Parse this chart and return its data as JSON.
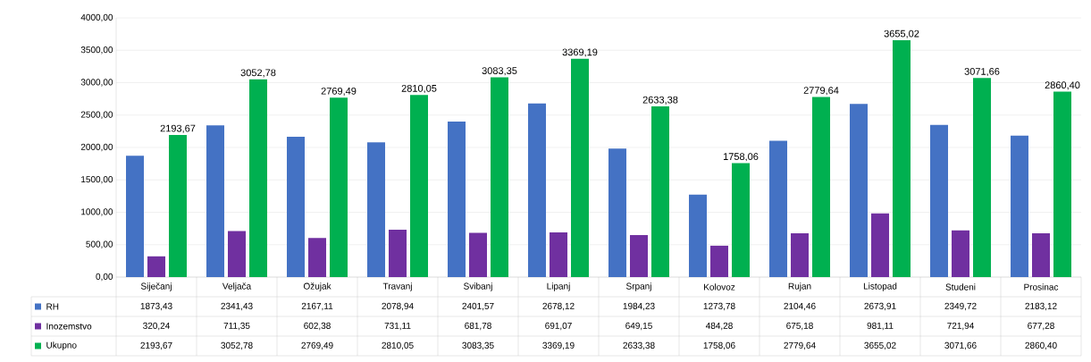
{
  "chart_data": {
    "type": "bar",
    "categories": [
      "Siječanj",
      "Veljača",
      "Ožujak",
      "Travanj",
      "Svibanj",
      "Lipanj",
      "Srpanj",
      "Kolovoz",
      "Rujan",
      "Listopad",
      "Studeni",
      "Prosinac"
    ],
    "series": [
      {
        "name": "RH",
        "color": "#4472c4",
        "values": [
          1873.43,
          2341.43,
          2167.11,
          2078.94,
          2401.57,
          2678.12,
          1984.23,
          1273.78,
          2104.46,
          2673.91,
          2349.72,
          2183.12
        ],
        "value_labels": [
          "1873,43",
          "2341,43",
          "2167,11",
          "2078,94",
          "2401,57",
          "2678,12",
          "1984,23",
          "1273,78",
          "2104,46",
          "2673,91",
          "2349,72",
          "2183,12"
        ]
      },
      {
        "name": "Inozemstvo",
        "color": "#7030a0",
        "values": [
          320.24,
          711.35,
          602.38,
          731.11,
          681.78,
          691.07,
          649.15,
          484.28,
          675.18,
          981.11,
          721.94,
          677.28
        ],
        "value_labels": [
          "320,24",
          "711,35",
          "602,38",
          "731,11",
          "681,78",
          "691,07",
          "649,15",
          "484,28",
          "675,18",
          "981,11",
          "721,94",
          "677,28"
        ]
      },
      {
        "name": "Ukupno",
        "color": "#00b050",
        "values": [
          2193.67,
          3052.78,
          2769.49,
          2810.05,
          3083.35,
          3369.19,
          2633.38,
          1758.06,
          2779.64,
          3655.02,
          3071.66,
          2860.4
        ],
        "value_labels": [
          "2193,67",
          "3052,78",
          "2769,49",
          "2810,05",
          "3083,35",
          "3369,19",
          "2633,38",
          "1758,06",
          "2779,64",
          "3655,02",
          "3071,66",
          "2860,40"
        ]
      }
    ],
    "annotations": [
      "2193,67",
      "3052,78",
      "2769,49",
      "2810,05",
      "3083,35",
      "3369,19",
      "2633,38",
      "1758,06",
      "2779,64",
      "3655,02",
      "3071,66",
      "2860,40"
    ],
    "data_labels": true,
    "ylim": [
      0,
      4000
    ],
    "yticks": [
      {
        "value": 0,
        "label": "0,00"
      },
      {
        "value": 500,
        "label": "500,00"
      },
      {
        "value": 1000,
        "label": "1000,00"
      },
      {
        "value": 1500,
        "label": "1500,00"
      },
      {
        "value": 2000,
        "label": "2000,00"
      },
      {
        "value": 2500,
        "label": "2500,00"
      },
      {
        "value": 3000,
        "label": "3000,00"
      },
      {
        "value": 3500,
        "label": "3500,00"
      },
      {
        "value": 4000,
        "label": "4000,00"
      }
    ],
    "grid": "y",
    "legend": "bottom"
  }
}
